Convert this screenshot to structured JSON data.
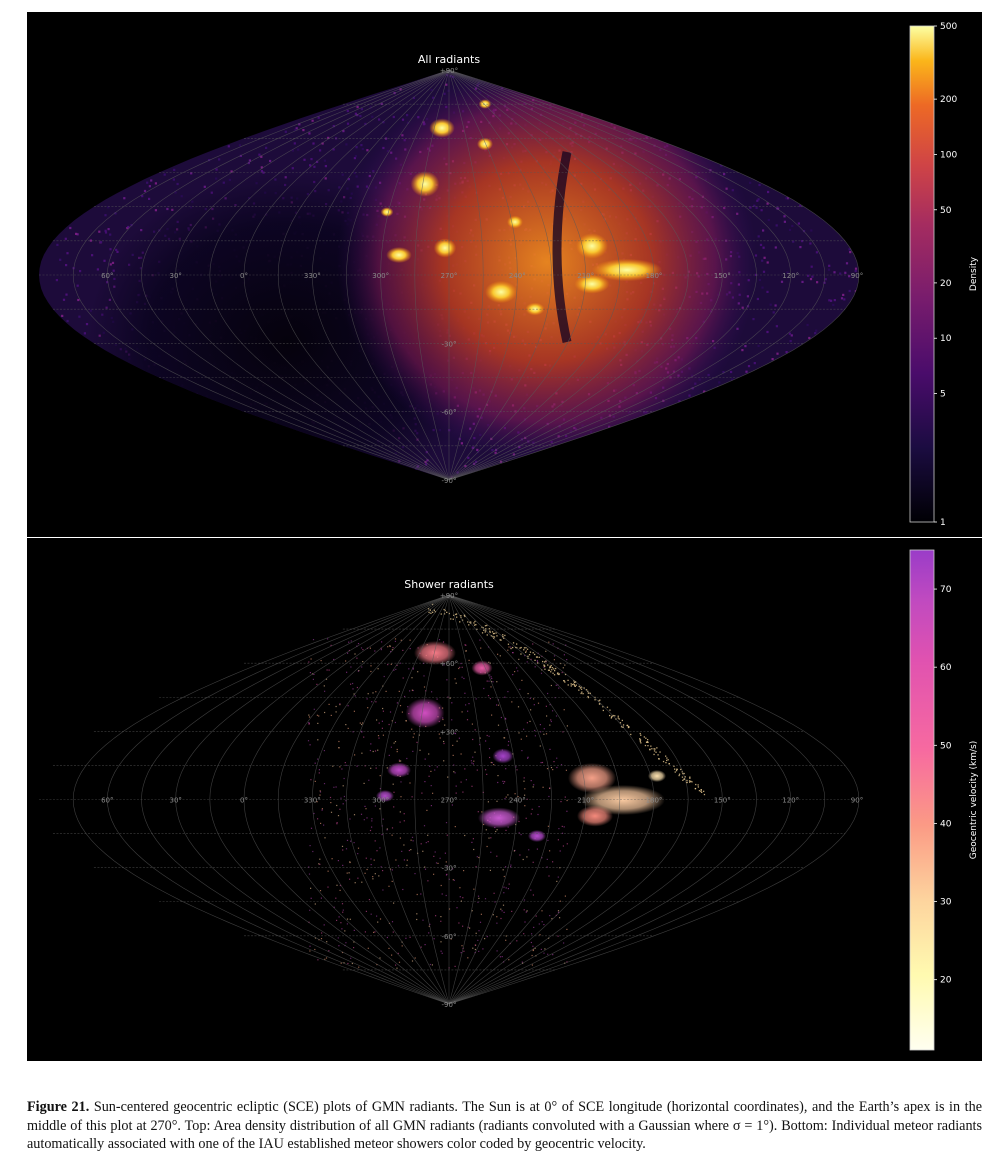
{
  "figure": {
    "panels": [
      {
        "title": "All radiants",
        "grid_labels": {
          "longitudes": [
            "60°",
            "30°",
            "0°",
            "330°",
            "300°",
            "270°",
            "240°",
            "210°",
            "180°",
            "150°",
            "120°",
            "90°"
          ],
          "latitudes": [
            "+90°",
            "-30°",
            "-60°",
            "-90°"
          ]
        },
        "colorbar": {
          "label": "Density",
          "scale": "log",
          "range": [
            1,
            500
          ],
          "ticks": [
            "500",
            "200",
            "100",
            "50",
            "20",
            "10",
            "5",
            "1"
          ],
          "colormap": "inferno"
        }
      },
      {
        "title": "Shower radiants",
        "grid_labels": {
          "longitudes": [
            "60°",
            "30°",
            "0°",
            "330°",
            "300°",
            "270°",
            "240°",
            "210°",
            "180°",
            "150°",
            "120°",
            "90°"
          ],
          "latitudes": [
            "+90°",
            "+60°",
            "+30°",
            "-30°",
            "-60°",
            "-90°"
          ]
        },
        "colorbar": {
          "label": "Geocentric velocity (km/s)",
          "scale": "linear",
          "range": [
            11,
            75
          ],
          "ticks": [
            "70",
            "60",
            "50",
            "40",
            "30",
            "20"
          ],
          "colormap": "spring-magma"
        }
      }
    ],
    "caption": {
      "label": "Figure 21.",
      "text": " Sun-centered geocentric ecliptic (SCE) plots of GMN radiants. The Sun is at 0° of SCE longitude (horizontal coordinates), and the Earth’s apex is in the middle of this plot at 270°. Top: Area density distribution of all GMN radiants (radiants convoluted with a Gaussian where σ = 1°). Bottom: Individual meteor radiants automatically associated with one of the IAU established meteor showers color coded by geocentric velocity."
    }
  }
}
